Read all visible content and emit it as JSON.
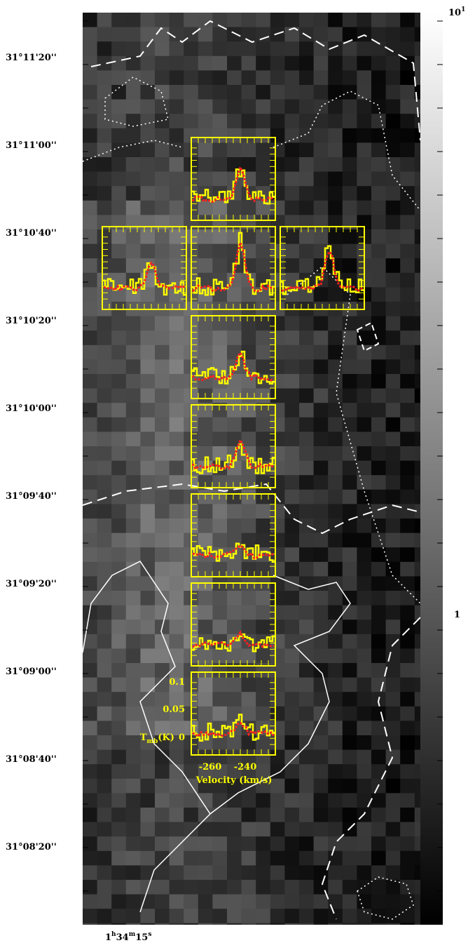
{
  "dec_labels": [
    "31°11'20''",
    "31°11'00''",
    "31°10'40''",
    "31°10'20''",
    "31°10'00''",
    "31°09'40''",
    "31°09'20''",
    "31°09'00''",
    "31°08'40''",
    "31°08'20''"
  ],
  "ra_label": {
    "hours": "1",
    "hours_unit": "h",
    "minutes": "34",
    "minutes_unit": "m",
    "seconds": "15",
    "seconds_unit": "s"
  },
  "colorbar": {
    "top_base": "10",
    "top_exponent": "1",
    "middle": "1"
  },
  "spectrum_axes": {
    "y_ticks": [
      "0.1",
      "0.05",
      "0"
    ],
    "y_label_main": "T",
    "y_label_sub": "mb",
    "y_label_unit": "(K)",
    "x_ticks": [
      "-260",
      "-240"
    ],
    "x_label": "Velocity (km/s)"
  }
}
